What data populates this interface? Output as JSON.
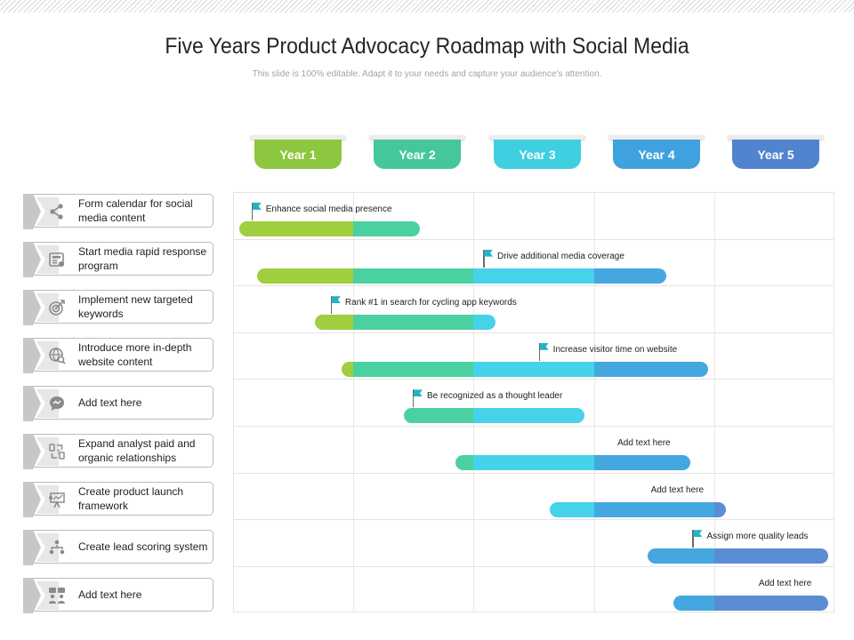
{
  "title": "Five Years Product Advocacy Roadmap with Social Media",
  "subtitle": "This slide is 100% editable. Adapt it to your needs and capture your audience's attention.",
  "years": [
    {
      "label": "Year 1",
      "color": "#8dc63f"
    },
    {
      "label": "Year 2",
      "color": "#45c79a"
    },
    {
      "label": "Year 3",
      "color": "#3ecfe0"
    },
    {
      "label": "Year 4",
      "color": "#3fa2de"
    },
    {
      "label": "Year 5",
      "color": "#5184cf"
    }
  ],
  "segment_colors": [
    "#9fce3e",
    "#4bd1a0",
    "#46d2e8",
    "#45a7e0",
    "#5a8dd3"
  ],
  "tasks": [
    {
      "label": "Form calendar for social media content",
      "icon": "share-icon"
    },
    {
      "label": "Start media rapid response program",
      "icon": "newspaper-icon"
    },
    {
      "label": "Implement new targeted keywords",
      "icon": "target-icon"
    },
    {
      "label": "Introduce more in-depth website content",
      "icon": "globe-search-icon"
    },
    {
      "label": "Add text here",
      "icon": "chat-bubble-icon"
    },
    {
      "label": "Expand analyst paid and organic relationships",
      "icon": "handshake-icon"
    },
    {
      "label": "Create product launch framework",
      "icon": "presentation-icon"
    },
    {
      "label": "Create lead scoring system",
      "icon": "org-chart-icon"
    },
    {
      "label": "Add text here",
      "icon": "team-chat-icon"
    }
  ],
  "chart_data": {
    "type": "gantt",
    "axis": {
      "unit": "year",
      "range": [
        0,
        5
      ]
    },
    "rows": [
      {
        "label": "Enhance social media presence",
        "start": 0.05,
        "end": 1.55,
        "flag": true
      },
      {
        "label": "Drive additional media coverage",
        "start": 0.2,
        "end": 3.6,
        "flag": true
      },
      {
        "label": "Rank #1 in search for cycling app keywords",
        "start": 0.68,
        "end": 2.18,
        "flag": true
      },
      {
        "label": "Increase visitor time on website",
        "start": 0.9,
        "end": 3.95,
        "flag": true
      },
      {
        "label": "Be recognized as a thought leader",
        "start": 1.42,
        "end": 2.92,
        "flag": true
      },
      {
        "label": "Add text here",
        "start": 1.85,
        "end": 3.8,
        "flag": false
      },
      {
        "label": "Add text here",
        "start": 2.63,
        "end": 4.1,
        "flag": false
      },
      {
        "label": "Assign more quality leads",
        "start": 3.45,
        "end": 4.95,
        "flag": true
      },
      {
        "label": "Add text here",
        "start": 3.66,
        "end": 4.95,
        "flag": false
      }
    ]
  }
}
